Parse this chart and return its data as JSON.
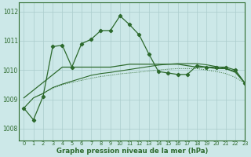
{
  "xlabel": "Graphe pression niveau de la mer (hPa)",
  "background_color": "#cce8e8",
  "grid_color": "#aacccc",
  "line_color": "#2d6a2d",
  "xlim": [
    -0.5,
    23
  ],
  "ylim": [
    1007.6,
    1012.3
  ],
  "yticks": [
    1008,
    1009,
    1010,
    1011,
    1012
  ],
  "xticks": [
    0,
    1,
    2,
    3,
    4,
    5,
    6,
    7,
    8,
    9,
    10,
    11,
    12,
    13,
    14,
    15,
    16,
    17,
    18,
    19,
    20,
    21,
    22,
    23
  ],
  "main_x": [
    0,
    1,
    2,
    3,
    4,
    5,
    6,
    7,
    8,
    9,
    10,
    11,
    12,
    13,
    14,
    15,
    16,
    17,
    18,
    19,
    20,
    21,
    22,
    23
  ],
  "main_y": [
    1008.7,
    1008.3,
    1009.1,
    1010.8,
    1010.85,
    1010.1,
    1010.9,
    1011.05,
    1011.35,
    1011.35,
    1011.85,
    1011.55,
    1011.2,
    1010.55,
    1009.95,
    1009.9,
    1009.85,
    1009.85,
    1010.15,
    1010.1,
    1010.1,
    1010.1,
    1010.0,
    1009.55
  ],
  "line2_x": [
    0,
    4,
    5,
    6,
    7,
    8,
    9,
    10,
    11,
    12,
    13,
    14,
    15,
    16,
    17,
    18,
    19,
    20,
    21,
    22,
    23
  ],
  "line2_y": [
    1009.05,
    1010.1,
    1010.1,
    1010.1,
    1010.1,
    1010.1,
    1010.1,
    1010.15,
    1010.2,
    1010.2,
    1010.2,
    1010.2,
    1010.2,
    1010.2,
    1010.15,
    1010.1,
    1010.1,
    1010.05,
    1010.05,
    1009.95,
    1009.55
  ],
  "line3_x": [
    0,
    1,
    2,
    3,
    4,
    5,
    6,
    7,
    8,
    9,
    10,
    11,
    12,
    13,
    14,
    15,
    16,
    17,
    18,
    19,
    20,
    21,
    22,
    23
  ],
  "line3_y": [
    1008.7,
    1009.05,
    1009.2,
    1009.4,
    1009.52,
    1009.62,
    1009.72,
    1009.82,
    1009.88,
    1009.92,
    1009.97,
    1010.02,
    1010.07,
    1010.12,
    1010.17,
    1010.2,
    1010.22,
    1010.22,
    1010.22,
    1010.18,
    1010.12,
    1010.05,
    1009.92,
    1009.55
  ],
  "line4_x": [
    0,
    1,
    2,
    3,
    4,
    5,
    6,
    7,
    8,
    9,
    10,
    11,
    12,
    13,
    14,
    15,
    16,
    17,
    18,
    19,
    20,
    21,
    22,
    23
  ],
  "line4_y": [
    1008.7,
    1009.05,
    1009.2,
    1009.38,
    1009.5,
    1009.58,
    1009.65,
    1009.72,
    1009.78,
    1009.82,
    1009.87,
    1009.9,
    1009.93,
    1009.97,
    1010.0,
    1010.03,
    1010.05,
    1010.05,
    1010.05,
    1010.0,
    1009.95,
    1009.88,
    1009.75,
    1009.55
  ]
}
